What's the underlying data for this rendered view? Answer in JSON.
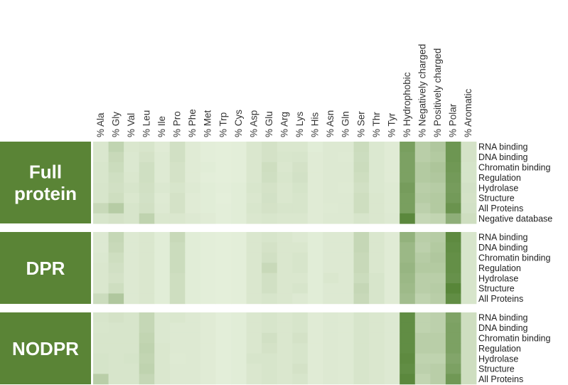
{
  "chart_data": {
    "type": "heatmap",
    "colors": {
      "block": "#5a8436",
      "block_text": "#ffffff",
      "low": "#e6f0dc",
      "high": "#4f7f2f"
    },
    "columns": [
      "% Ala",
      "% Gly",
      "% Val",
      "% Leu",
      "% Ile",
      "% Pro",
      "% Phe",
      "% Met",
      "% Trp",
      "% Cys",
      "% Asp",
      "% Glu",
      "% Arg",
      "% Lys",
      "% His",
      "% Asn",
      "% Gln",
      "% Ser",
      "% Thr",
      "% Tyr",
      "% Hydrophobic",
      "% Negatively charged",
      "% Positively charged",
      "% Polar",
      "% Aromatic"
    ],
    "groups": [
      {
        "label_lines": [
          "Full",
          "protein"
        ],
        "rows": [
          {
            "label": "RNA binding",
            "values": [
              0.08,
              0.25,
              0.08,
              0.1,
              0.04,
              0.14,
              0.04,
              0.02,
              0.01,
              0.02,
              0.08,
              0.12,
              0.08,
              0.08,
              0.03,
              0.06,
              0.06,
              0.18,
              0.07,
              0.04,
              0.72,
              0.3,
              0.36,
              0.8,
              0.12
            ]
          },
          {
            "label": "DNA binding",
            "values": [
              0.08,
              0.2,
              0.07,
              0.12,
              0.05,
              0.14,
              0.04,
              0.02,
              0.01,
              0.02,
              0.08,
              0.12,
              0.09,
              0.1,
              0.04,
              0.06,
              0.05,
              0.17,
              0.07,
              0.04,
              0.7,
              0.3,
              0.34,
              0.8,
              0.12
            ]
          },
          {
            "label": "Chromatin binding",
            "values": [
              0.09,
              0.18,
              0.07,
              0.15,
              0.05,
              0.12,
              0.04,
              0.03,
              0.01,
              0.02,
              0.08,
              0.16,
              0.08,
              0.12,
              0.04,
              0.06,
              0.06,
              0.18,
              0.07,
              0.04,
              0.7,
              0.34,
              0.38,
              0.78,
              0.11
            ]
          },
          {
            "label": "Regulation",
            "values": [
              0.09,
              0.15,
              0.08,
              0.15,
              0.05,
              0.12,
              0.04,
              0.02,
              0.01,
              0.02,
              0.08,
              0.15,
              0.09,
              0.13,
              0.04,
              0.06,
              0.06,
              0.16,
              0.07,
              0.04,
              0.7,
              0.34,
              0.36,
              0.76,
              0.11
            ]
          },
          {
            "label": "Hydrolase",
            "values": [
              0.1,
              0.14,
              0.1,
              0.14,
              0.07,
              0.1,
              0.05,
              0.03,
              0.02,
              0.03,
              0.09,
              0.12,
              0.08,
              0.11,
              0.04,
              0.06,
              0.05,
              0.14,
              0.07,
              0.05,
              0.74,
              0.3,
              0.32,
              0.74,
              0.13
            ]
          },
          {
            "label": "Structure",
            "values": [
              0.1,
              0.16,
              0.08,
              0.13,
              0.05,
              0.12,
              0.04,
              0.03,
              0.01,
              0.03,
              0.08,
              0.13,
              0.08,
              0.1,
              0.04,
              0.06,
              0.06,
              0.16,
              0.08,
              0.05,
              0.72,
              0.32,
              0.34,
              0.76,
              0.12
            ]
          },
          {
            "label": "All Proteins",
            "values": [
              0.2,
              0.32,
              0.1,
              0.14,
              0.06,
              0.12,
              0.04,
              0.03,
              0.02,
              0.03,
              0.09,
              0.12,
              0.1,
              0.1,
              0.04,
              0.05,
              0.06,
              0.16,
              0.08,
              0.05,
              0.72,
              0.28,
              0.34,
              0.82,
              0.13
            ]
          },
          {
            "label": "Negative database",
            "values": [
              0.1,
              0.12,
              0.1,
              0.26,
              0.08,
              0.08,
              0.06,
              0.04,
              0.02,
              0.03,
              0.08,
              0.09,
              0.08,
              0.08,
              0.04,
              0.06,
              0.06,
              0.1,
              0.08,
              0.06,
              0.92,
              0.22,
              0.24,
              0.58,
              0.16
            ]
          }
        ]
      },
      {
        "label_lines": [
          "DPR"
        ],
        "rows": [
          {
            "label": "RNA binding",
            "values": [
              0.06,
              0.22,
              0.06,
              0.08,
              0.03,
              0.2,
              0.03,
              0.02,
              0.01,
              0.02,
              0.08,
              0.1,
              0.08,
              0.06,
              0.03,
              0.06,
              0.06,
              0.22,
              0.08,
              0.04,
              0.55,
              0.3,
              0.32,
              0.9,
              0.1
            ]
          },
          {
            "label": "DNA binding",
            "values": [
              0.06,
              0.2,
              0.06,
              0.08,
              0.03,
              0.18,
              0.03,
              0.02,
              0.01,
              0.02,
              0.08,
              0.12,
              0.08,
              0.08,
              0.03,
              0.06,
              0.06,
              0.22,
              0.08,
              0.04,
              0.5,
              0.28,
              0.34,
              0.88,
              0.1
            ]
          },
          {
            "label": "Chromatin binding",
            "values": [
              0.07,
              0.16,
              0.06,
              0.08,
              0.03,
              0.18,
              0.03,
              0.02,
              0.01,
              0.02,
              0.08,
              0.14,
              0.08,
              0.1,
              0.03,
              0.06,
              0.06,
              0.2,
              0.08,
              0.04,
              0.5,
              0.32,
              0.36,
              0.86,
              0.1
            ]
          },
          {
            "label": "Regulation",
            "values": [
              0.08,
              0.14,
              0.06,
              0.08,
              0.03,
              0.18,
              0.03,
              0.02,
              0.01,
              0.02,
              0.08,
              0.2,
              0.08,
              0.1,
              0.03,
              0.06,
              0.06,
              0.2,
              0.08,
              0.04,
              0.52,
              0.34,
              0.34,
              0.86,
              0.1
            ]
          },
          {
            "label": "Hydrolase",
            "values": [
              0.08,
              0.12,
              0.06,
              0.08,
              0.03,
              0.16,
              0.03,
              0.02,
              0.01,
              0.02,
              0.08,
              0.14,
              0.08,
              0.08,
              0.03,
              0.08,
              0.06,
              0.18,
              0.1,
              0.04,
              0.5,
              0.3,
              0.3,
              0.84,
              0.1
            ]
          },
          {
            "label": "Structure",
            "values": [
              0.08,
              0.16,
              0.06,
              0.08,
              0.03,
              0.16,
              0.03,
              0.02,
              0.01,
              0.02,
              0.08,
              0.14,
              0.08,
              0.1,
              0.03,
              0.06,
              0.06,
              0.22,
              0.1,
              0.04,
              0.48,
              0.3,
              0.32,
              0.94,
              0.1
            ]
          },
          {
            "label": "All Proteins",
            "values": [
              0.18,
              0.36,
              0.06,
              0.08,
              0.03,
              0.16,
              0.03,
              0.02,
              0.01,
              0.02,
              0.08,
              0.1,
              0.08,
              0.06,
              0.03,
              0.06,
              0.06,
              0.2,
              0.1,
              0.04,
              0.45,
              0.26,
              0.3,
              0.88,
              0.1
            ]
          }
        ]
      },
      {
        "label_lines": [
          "NODPR"
        ],
        "rows": [
          {
            "label": "RNA binding",
            "values": [
              0.1,
              0.12,
              0.1,
              0.22,
              0.07,
              0.08,
              0.06,
              0.04,
              0.02,
              0.03,
              0.08,
              0.1,
              0.08,
              0.1,
              0.04,
              0.06,
              0.05,
              0.1,
              0.08,
              0.06,
              0.88,
              0.26,
              0.28,
              0.68,
              0.16
            ]
          },
          {
            "label": "DNA binding",
            "values": [
              0.09,
              0.1,
              0.1,
              0.22,
              0.07,
              0.06,
              0.06,
              0.04,
              0.02,
              0.03,
              0.08,
              0.1,
              0.08,
              0.1,
              0.04,
              0.06,
              0.05,
              0.1,
              0.08,
              0.06,
              0.88,
              0.26,
              0.28,
              0.7,
              0.16
            ]
          },
          {
            "label": "Chromatin binding",
            "values": [
              0.1,
              0.1,
              0.1,
              0.24,
              0.07,
              0.06,
              0.06,
              0.04,
              0.02,
              0.03,
              0.08,
              0.14,
              0.08,
              0.12,
              0.04,
              0.06,
              0.05,
              0.1,
              0.08,
              0.06,
              0.88,
              0.3,
              0.3,
              0.7,
              0.16
            ]
          },
          {
            "label": "Regulation",
            "values": [
              0.1,
              0.1,
              0.1,
              0.26,
              0.08,
              0.06,
              0.06,
              0.04,
              0.02,
              0.03,
              0.08,
              0.12,
              0.08,
              0.1,
              0.04,
              0.06,
              0.05,
              0.1,
              0.08,
              0.06,
              0.88,
              0.3,
              0.3,
              0.7,
              0.16
            ]
          },
          {
            "label": "Hydrolase",
            "values": [
              0.11,
              0.1,
              0.11,
              0.24,
              0.08,
              0.05,
              0.06,
              0.04,
              0.02,
              0.03,
              0.1,
              0.1,
              0.08,
              0.1,
              0.04,
              0.06,
              0.05,
              0.1,
              0.08,
              0.06,
              0.9,
              0.26,
              0.26,
              0.66,
              0.16
            ]
          },
          {
            "label": "Structure",
            "values": [
              0.11,
              0.1,
              0.1,
              0.26,
              0.08,
              0.06,
              0.06,
              0.04,
              0.02,
              0.03,
              0.08,
              0.1,
              0.08,
              0.12,
              0.04,
              0.06,
              0.05,
              0.1,
              0.08,
              0.06,
              0.88,
              0.28,
              0.3,
              0.7,
              0.16
            ]
          },
          {
            "label": "All Proteins",
            "values": [
              0.3,
              0.1,
              0.1,
              0.22,
              0.08,
              0.06,
              0.06,
              0.04,
              0.02,
              0.03,
              0.08,
              0.1,
              0.08,
              0.1,
              0.04,
              0.06,
              0.05,
              0.1,
              0.08,
              0.06,
              0.92,
              0.24,
              0.3,
              0.78,
              0.16
            ]
          }
        ]
      }
    ]
  }
}
